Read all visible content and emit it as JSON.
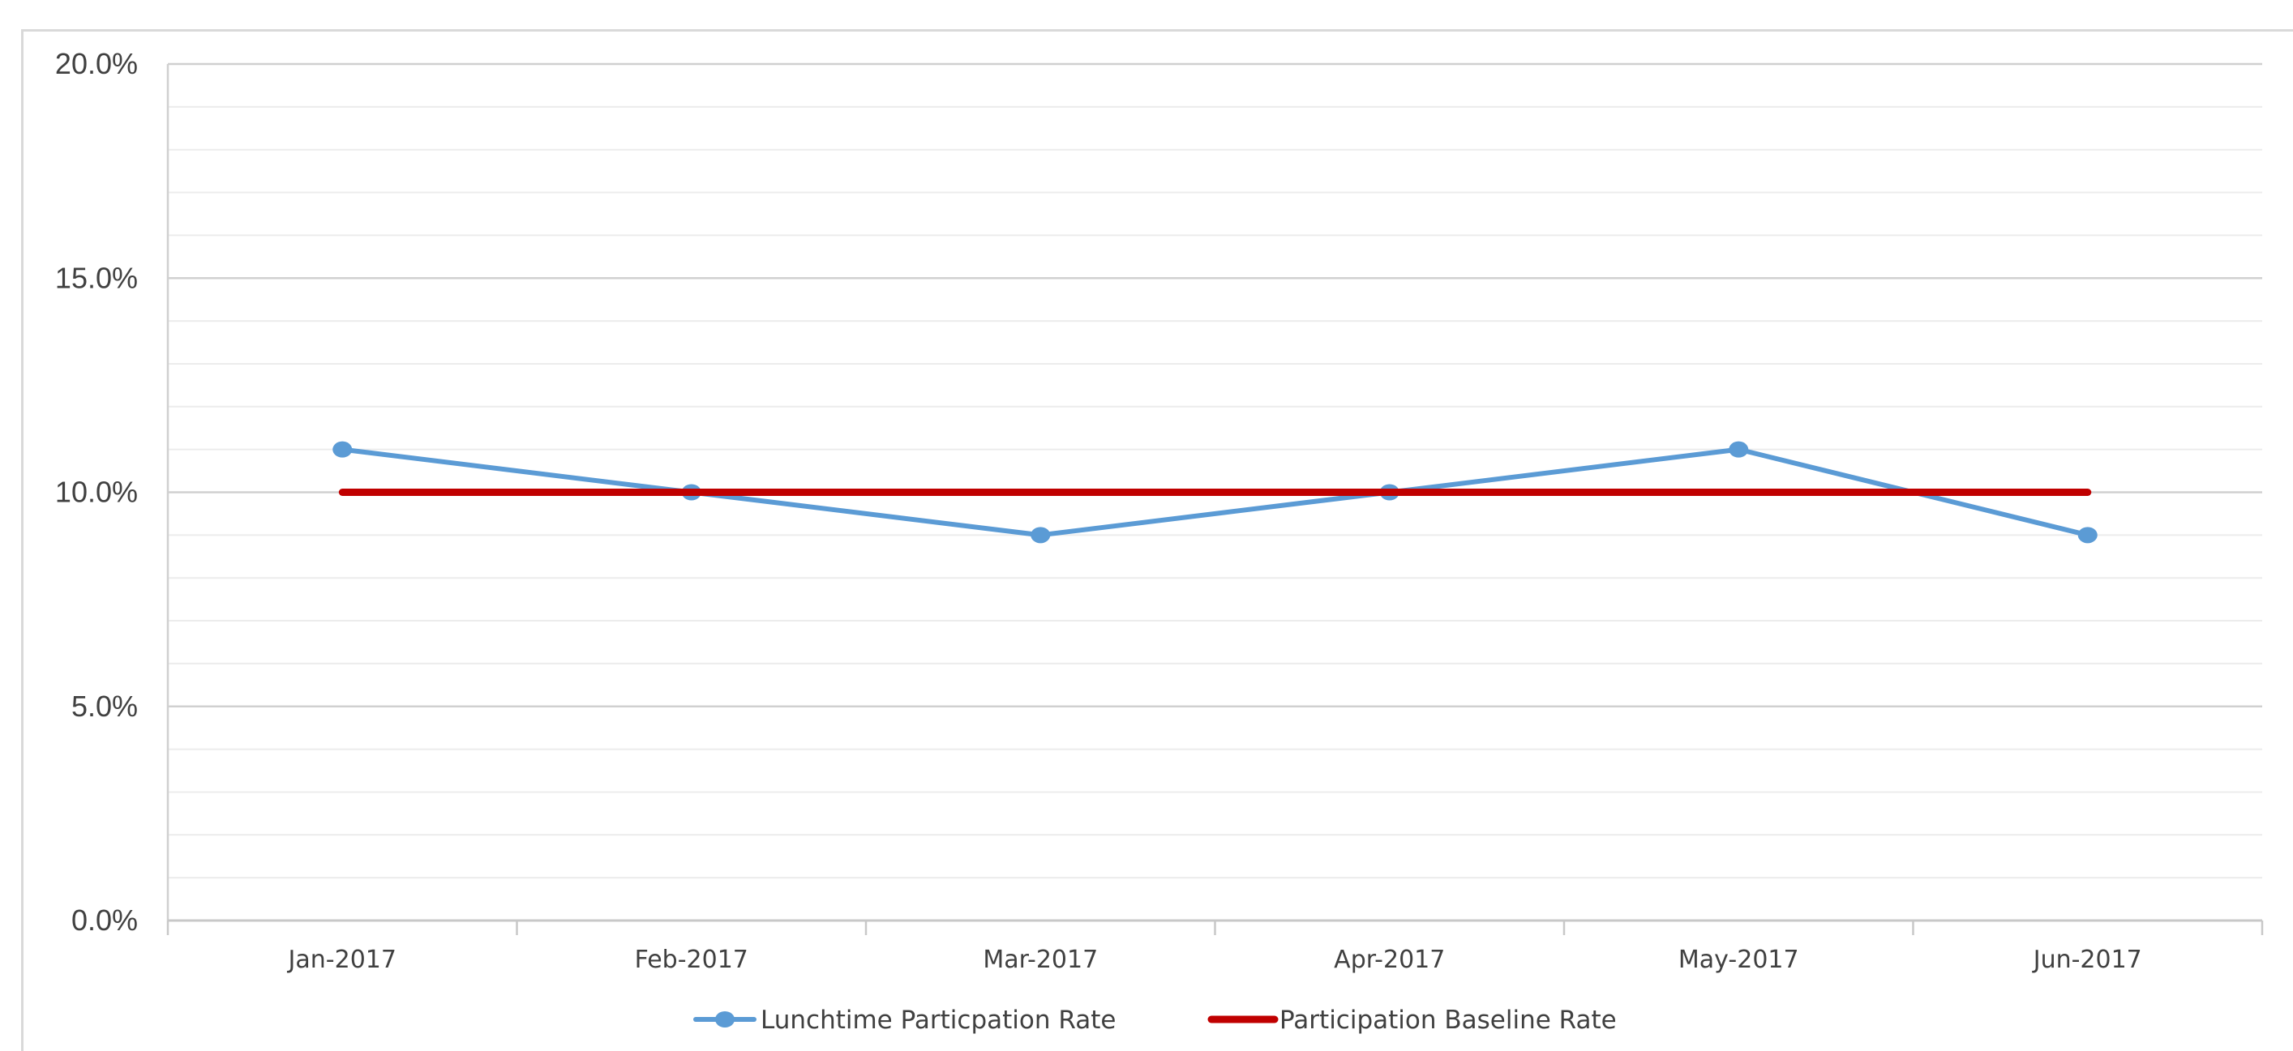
{
  "chart_data": {
    "type": "line",
    "categories": [
      "Jan-2017",
      "Feb-2017",
      "Mar-2017",
      "Apr-2017",
      "May-2017",
      "Jun-2017"
    ],
    "series": [
      {
        "name": "Lunchtime Particpation Rate",
        "values": [
          11.0,
          10.0,
          9.0,
          10.0,
          11.0,
          9.0
        ],
        "color": "#5b9bd5",
        "markers": true
      },
      {
        "name": "Participation Baseline Rate",
        "values": [
          10.0,
          10.0,
          10.0,
          10.0,
          10.0,
          10.0
        ],
        "color": "#c00000",
        "markers": false
      }
    ],
    "y_ticks": [
      "0.0%",
      "5.0%",
      "10.0%",
      "15.0%",
      "20.0%"
    ],
    "ylim": [
      0,
      20
    ],
    "major_tick_step": 5,
    "minor_tick_step": 1,
    "grid": true,
    "legend_position": "bottom-center",
    "title": "",
    "xlabel": "",
    "ylabel": ""
  }
}
